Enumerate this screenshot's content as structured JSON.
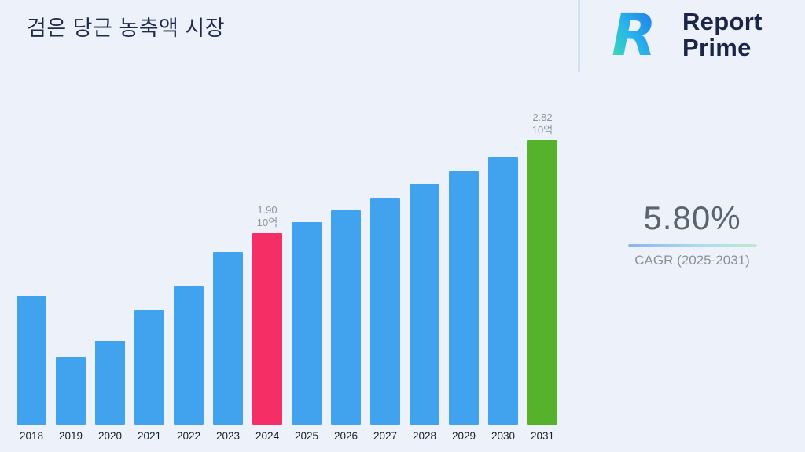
{
  "title": "검은 당근 농축액 시장",
  "logo": {
    "line1": "Report",
    "line2": "Prime"
  },
  "cagr": {
    "value": "5.80%",
    "label": "CAGR (2025-2031)"
  },
  "chart_data": {
    "type": "bar",
    "title": "검은 당근 농축액 시장",
    "xlabel": "",
    "ylabel": "",
    "ylim": [
      0,
      3
    ],
    "grid": false,
    "legend": "none",
    "unit": "10억",
    "categories": [
      "2018",
      "2019",
      "2020",
      "2021",
      "2022",
      "2023",
      "2024",
      "2025",
      "2026",
      "2027",
      "2028",
      "2029",
      "2030",
      "2031"
    ],
    "values": [
      1.28,
      0.67,
      0.83,
      1.14,
      1.37,
      1.71,
      1.9,
      2.01,
      2.13,
      2.25,
      2.38,
      2.52,
      2.66,
      2.82
    ],
    "annotations": [
      {
        "category": "2024",
        "lines": [
          "1.90",
          "10억"
        ]
      },
      {
        "category": "2031",
        "lines": [
          "2.82",
          "10억"
        ]
      }
    ],
    "colors": {
      "default": "#41a3ee",
      "highlights": {
        "2024": "#f52f66",
        "2031": "#57b22b"
      }
    }
  }
}
